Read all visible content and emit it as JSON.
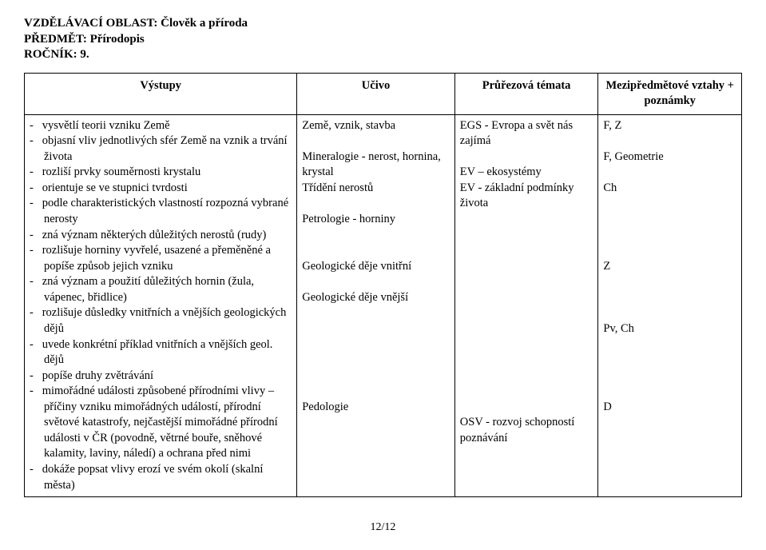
{
  "header": {
    "line1": "VZDĚLÁVACÍ OBLAST: Člověk a příroda",
    "line2": "PŘEDMĚT: Přírodopis",
    "line3": "ROČNÍK: 9."
  },
  "table": {
    "headers": {
      "c1": "Výstupy",
      "c2": "Učivo",
      "c3": "Průřezová témata",
      "c4": "Mezipředmětové vztahy + poznámky"
    },
    "col1": {
      "items": [
        "vysvětlí teorii vzniku Země",
        "objasní vliv jednotlivých sfér Země na vznik a trvání života",
        "rozliší prvky souměrnosti krystalu",
        "orientuje se ve stupnici tvrdosti",
        "podle charakteristických vlastností rozpozná vybrané nerosty",
        "zná význam některých důležitých nerostů (rudy)",
        "rozlišuje horniny vyvřelé, usazené a přeměněné a popíše způsob jejich vzniku",
        "zná význam a použití důležitých hornin (žula, vápenec, břidlice)",
        "rozlišuje důsledky vnitřních a vnějších geologických dějů",
        "uvede konkrétní příklad vnitřních a vnějších geol. dějů",
        "popíše druhy zvětrávání",
        "mimořádné události způsobené přírodními vlivy – příčiny vzniku mimořádných událostí, přírodní světové katastrofy, nejčastější mimořádné přírodní události v ČR (povodně, větrné bouře, sněhové kalamity, laviny, náledí) a ochrana před nimi",
        "dokáže popsat vlivy erozí ve svém okolí (skalní města)"
      ]
    },
    "col2": {
      "l1": "Země, vznik, stavba",
      "l2": "Mineralogie - nerost, hornina, krystal",
      "l3": "Třídění nerostů",
      "l4": "Petrologie - horniny",
      "l5": "Geologické děje vnitřní",
      "l6": "Geologické děje vnější",
      "l7": "Pedologie"
    },
    "col3": {
      "l1": "EGS - Evropa a svět nás zajímá",
      "l2": "EV – ekosystémy",
      "l3": "EV - základní podmínky života",
      "l4": "OSV - rozvoj schopností poznávání"
    },
    "col4": {
      "l1": "F, Z",
      "l2": "F, Geometrie",
      "l3": "Ch",
      "l4": "Z",
      "l5": "Pv, Ch",
      "l6": "D"
    }
  },
  "pagenum": "12/12"
}
